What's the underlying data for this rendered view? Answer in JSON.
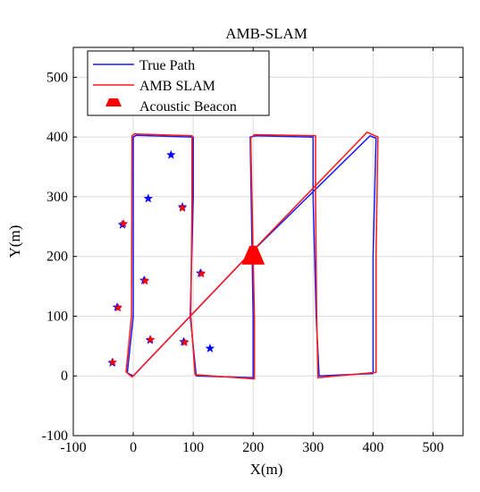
{
  "chart_data": {
    "type": "line",
    "title": "AMB-SLAM",
    "xlabel": "X(m)",
    "ylabel": "Y(m)",
    "xlim": [
      -100,
      550
    ],
    "ylim": [
      -100,
      550
    ],
    "xticks": [
      -100,
      0,
      100,
      200,
      300,
      400,
      500
    ],
    "yticks": [
      -100,
      0,
      100,
      200,
      300,
      400,
      500
    ],
    "grid": true,
    "legend_position": "top-left",
    "legend": [
      "True Path",
      "AMB SLAM",
      "Acoustic Beacon"
    ],
    "colors": {
      "true_path": "#1a1aff",
      "amb_slam": "#ff1a1a",
      "beacon": "#ff0000",
      "landmark_true": "#0000ff",
      "landmark_est": "#ff0000",
      "grid": "#dcdcdc"
    },
    "series": [
      {
        "name": "True Path",
        "x": [
          0,
          -10,
          0,
          0,
          5,
          100,
          100,
          95,
          105,
          200,
          200,
          195,
          205,
          300,
          300,
          305,
          310,
          400,
          400,
          405,
          395,
          195,
          0
        ],
        "y": [
          0,
          5,
          100,
          400,
          403,
          400,
          300,
          100,
          0,
          -3,
          100,
          400,
          402,
          400,
          300,
          100,
          0,
          4,
          200,
          398,
          402,
          205,
          0
        ]
      },
      {
        "name": "AMB SLAM",
        "x": [
          -2,
          -12,
          -3,
          -2,
          2,
          98,
          98,
          96,
          103,
          202,
          202,
          196,
          202,
          304,
          304,
          306,
          308,
          405,
          405,
          408,
          390,
          190,
          -2
        ],
        "y": [
          -2,
          7,
          100,
          402,
          405,
          402,
          300,
          100,
          2,
          -5,
          100,
          398,
          404,
          402,
          300,
          100,
          -3,
          6,
          200,
          400,
          408,
          200,
          -2
        ]
      }
    ],
    "beacon": {
      "name": "Acoustic Beacon",
      "x": 200,
      "y": 200
    },
    "landmarks_true": [
      {
        "x": 63,
        "y": 370
      },
      {
        "x": 25,
        "y": 297
      },
      {
        "x": 82,
        "y": 283
      },
      {
        "x": -18,
        "y": 253
      },
      {
        "x": 112,
        "y": 172
      },
      {
        "x": 18,
        "y": 160
      },
      {
        "x": -27,
        "y": 115
      },
      {
        "x": 28,
        "y": 60
      },
      {
        "x": 84,
        "y": 57
      },
      {
        "x": 128,
        "y": 46
      },
      {
        "x": -35,
        "y": 22
      }
    ],
    "landmarks_est": [
      {
        "x": 82,
        "y": 281
      },
      {
        "x": -16,
        "y": 255
      },
      {
        "x": 114,
        "y": 171
      },
      {
        "x": 20,
        "y": 159
      },
      {
        "x": -25,
        "y": 114
      },
      {
        "x": 29,
        "y": 61
      },
      {
        "x": 86,
        "y": 56
      },
      {
        "x": -34,
        "y": 23
      }
    ]
  }
}
